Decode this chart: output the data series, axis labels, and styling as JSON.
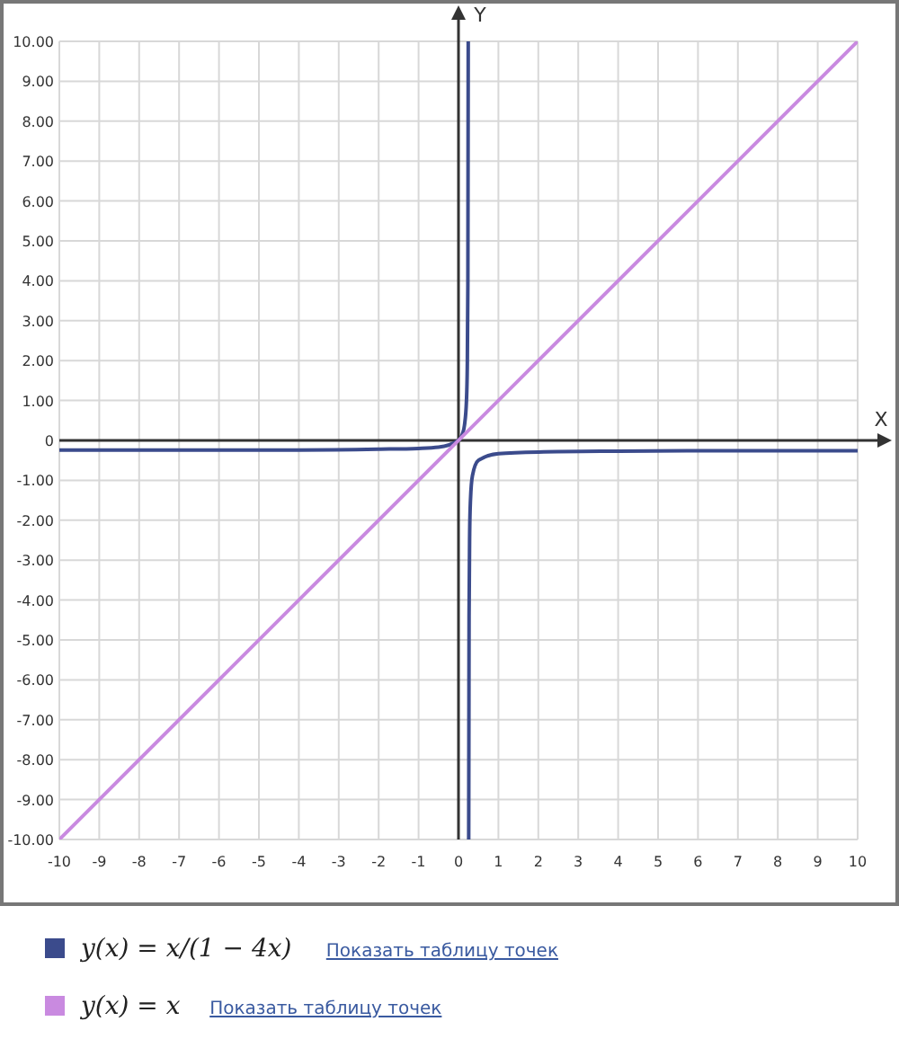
{
  "chart_data": {
    "type": "line",
    "xlabel": "X",
    "ylabel": "Y",
    "xlim": [
      -10,
      10
    ],
    "ylim": [
      -10,
      10
    ],
    "xticks": [
      -10,
      -9,
      -8,
      -7,
      -6,
      -5,
      -4,
      -3,
      -2,
      -1,
      0,
      1,
      2,
      3,
      4,
      5,
      6,
      7,
      8,
      9,
      10
    ],
    "yticks": [
      {
        "value": -10,
        "label": "-10.00"
      },
      {
        "value": -9,
        "label": "-9.00"
      },
      {
        "value": -8,
        "label": "-8.00"
      },
      {
        "value": -7,
        "label": "-7.00"
      },
      {
        "value": -6,
        "label": "-6.00"
      },
      {
        "value": -5,
        "label": "-5.00"
      },
      {
        "value": -4,
        "label": "-4.00"
      },
      {
        "value": -3,
        "label": "-3.00"
      },
      {
        "value": -2,
        "label": "-2.00"
      },
      {
        "value": -1,
        "label": "-1.00"
      },
      0,
      {
        "value": 1,
        "label": "1.00"
      },
      {
        "value": 2,
        "label": "2.00"
      },
      {
        "value": 3,
        "label": "3.00"
      },
      {
        "value": 4,
        "label": "4.00"
      },
      {
        "value": 5,
        "label": "5.00"
      },
      {
        "value": 6,
        "label": "6.00"
      },
      {
        "value": 7,
        "label": "7.00"
      },
      {
        "value": 8,
        "label": "8.00"
      },
      {
        "value": 9,
        "label": "9.00"
      },
      {
        "value": 10,
        "label": "10.00"
      }
    ],
    "grid": true,
    "legend": "bottom",
    "marker": "none",
    "line_style": "solid",
    "series": [
      {
        "name": "y(x) = x/(1 − 4x)",
        "color": "#3b4b8c",
        "x": [
          -10,
          -8,
          -6,
          -4,
          -2,
          -1,
          -0.5,
          0,
          0.1,
          0.15,
          0.2,
          0.22,
          0.235,
          0.244,
          0.25,
          0.256,
          0.265,
          0.28,
          0.3,
          0.35,
          0.5,
          1,
          2,
          4,
          6,
          8,
          10
        ],
        "values": [
          -0.24,
          -0.24,
          -0.24,
          -0.24,
          -0.22,
          -0.2,
          -0.17,
          0,
          0.17,
          0.38,
          1,
          1.83,
          3.92,
          10,
          null,
          -10,
          -4.4,
          -2.33,
          -1.5,
          -0.88,
          -0.5,
          -0.33,
          -0.29,
          -0.27,
          -0.26,
          -0.26,
          -0.26
        ]
      },
      {
        "name": "y(x) = x",
        "color": "#c98ae0",
        "x": [
          -10,
          10
        ],
        "values": [
          -10,
          10
        ]
      }
    ],
    "annotations": [
      "Показать таблицу точек",
      "Показать таблицу точек"
    ]
  }
}
